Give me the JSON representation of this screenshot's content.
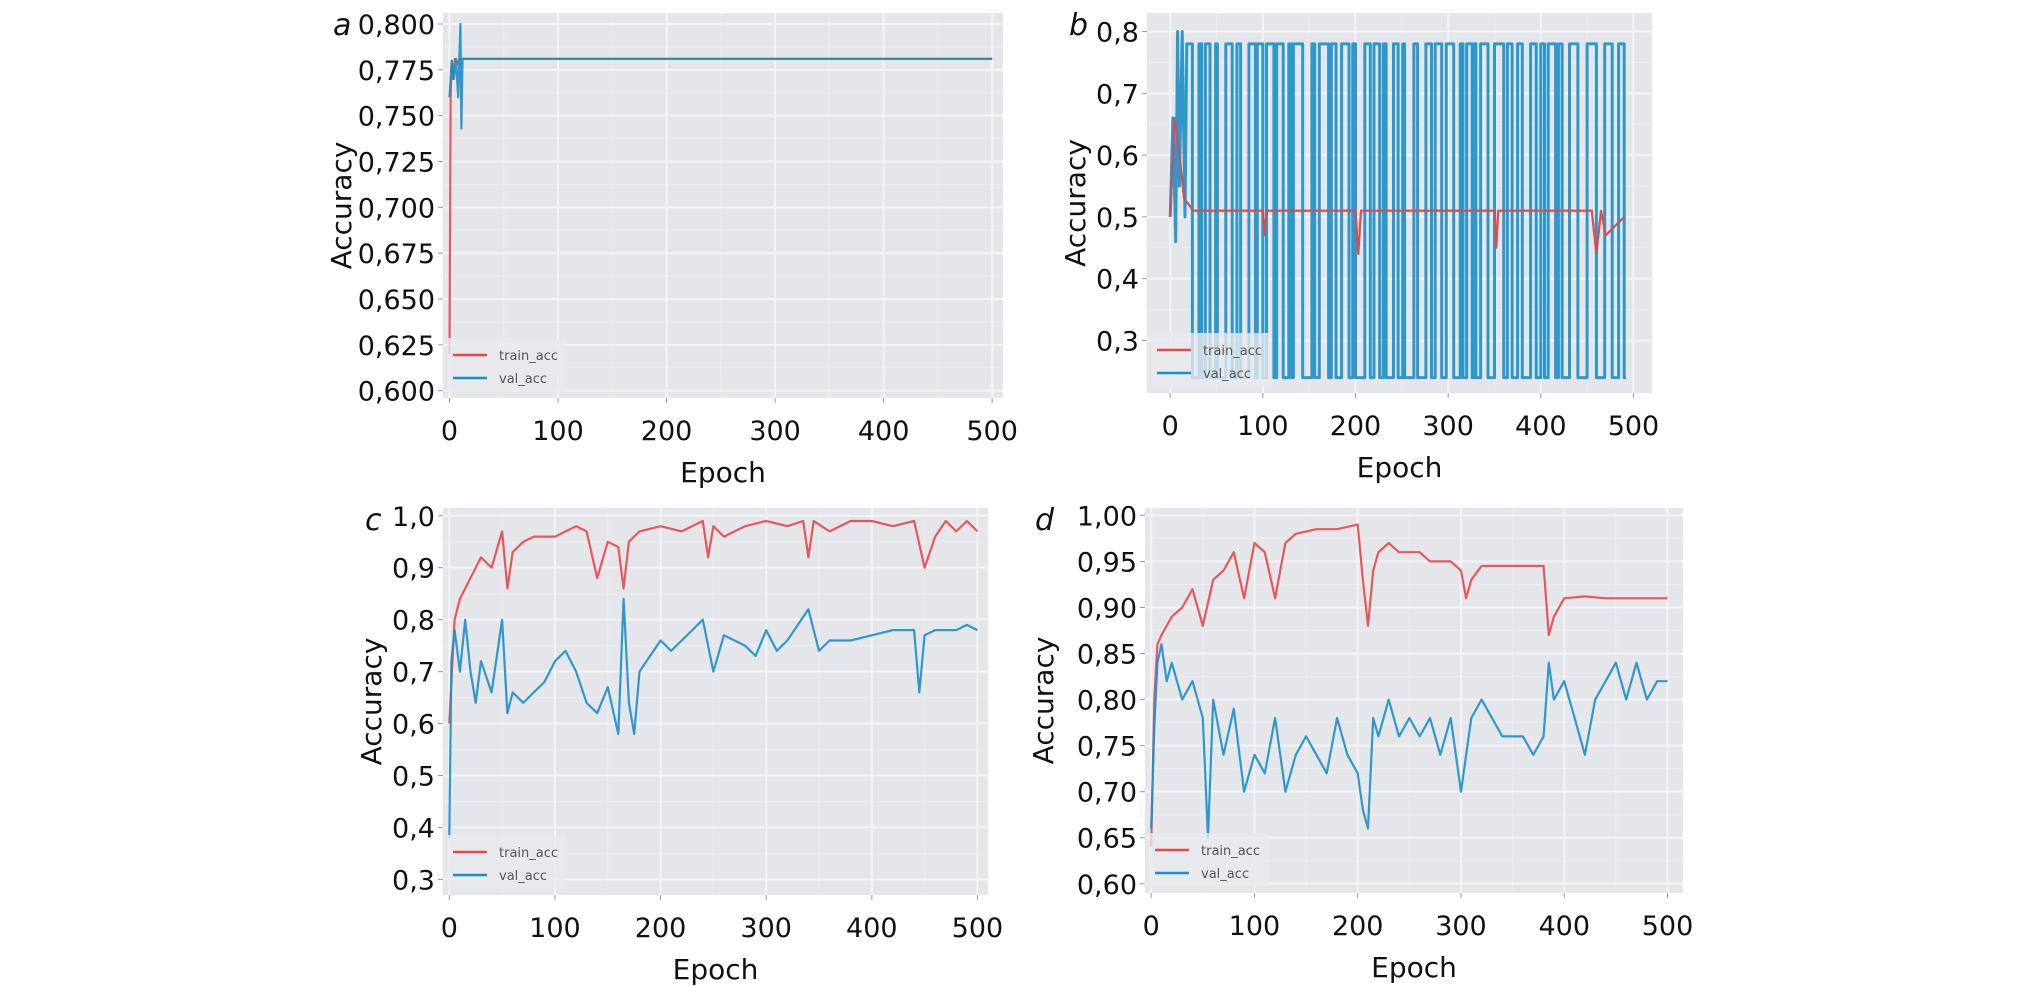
{
  "colors": {
    "train": "#e8474b",
    "val": "#1b8fc7",
    "panel_bg": "#e5e6ea",
    "grid": "#f4f4f6"
  },
  "chart_data": [
    {
      "panel": "a",
      "type": "line",
      "xlabel": "Epoch",
      "ylabel": "Accuracy",
      "xlim": [
        -6,
        510
      ],
      "ylim": [
        0.596,
        0.806
      ],
      "xticks": [
        0,
        100,
        200,
        300,
        400,
        500
      ],
      "xtick_labels": [
        "0",
        "100",
        "200",
        "300",
        "400",
        "500"
      ],
      "yticks": [
        0.6,
        0.625,
        0.65,
        0.675,
        0.7,
        0.725,
        0.75,
        0.775,
        0.8
      ],
      "ytick_labels": [
        "0,600",
        "0,625",
        "0,650",
        "0,675",
        "0,700",
        "0,725",
        "0,750",
        "0,775",
        "0,800"
      ],
      "legend": {
        "position": "bottom-left",
        "entries": [
          "train_acc",
          "val_acc"
        ]
      },
      "series": [
        {
          "name": "train_acc",
          "x": [
            0,
            1,
            2,
            3,
            5,
            7,
            9,
            12,
            500
          ],
          "values": [
            0.62,
            0.76,
            0.78,
            0.77,
            0.781,
            0.778,
            0.781,
            0.781,
            0.781
          ]
        },
        {
          "name": "val_acc",
          "x": [
            0,
            2,
            4,
            6,
            8,
            10,
            11,
            12,
            13,
            500
          ],
          "values": [
            0.76,
            0.78,
            0.77,
            0.781,
            0.76,
            0.8,
            0.743,
            0.781,
            0.781,
            0.781
          ]
        }
      ]
    },
    {
      "panel": "b",
      "type": "line",
      "xlabel": "Epoch",
      "ylabel": "Accuracy",
      "xlim": [
        -25,
        520
      ],
      "ylim": [
        0.215,
        0.83
      ],
      "xticks": [
        0,
        100,
        200,
        300,
        400,
        500
      ],
      "xtick_labels": [
        "0",
        "100",
        "200",
        "300",
        "400",
        "500"
      ],
      "yticks": [
        0.3,
        0.4,
        0.5,
        0.6,
        0.7,
        0.8
      ],
      "ytick_labels": [
        "0,3",
        "0,4",
        "0,5",
        "0,6",
        "0,7",
        "0,8"
      ],
      "legend": {
        "position": "bottom-left",
        "entries": [
          "train_acc",
          "val_acc"
        ]
      },
      "series": [
        {
          "name": "train_acc",
          "x": [
            0,
            5,
            10,
            15,
            20,
            25,
            100,
            102,
            104,
            200,
            203,
            206,
            350,
            352,
            354,
            455,
            460,
            465,
            470,
            490
          ],
          "values": [
            0.5,
            0.66,
            0.6,
            0.53,
            0.52,
            0.51,
            0.51,
            0.47,
            0.51,
            0.51,
            0.44,
            0.51,
            0.51,
            0.45,
            0.51,
            0.51,
            0.44,
            0.51,
            0.47,
            0.5
          ]
        },
        {
          "name": "val_acc",
          "pattern": "oscillating between 0.24 and 0.78",
          "low": 0.24,
          "high": 0.78,
          "early_peak": 0.8
        }
      ]
    },
    {
      "panel": "c",
      "type": "line",
      "xlabel": "Epoch",
      "ylabel": "Accuracy",
      "xlim": [
        -6,
        510
      ],
      "ylim": [
        0.27,
        1.015
      ],
      "xticks": [
        0,
        100,
        200,
        300,
        400,
        500
      ],
      "xtick_labels": [
        "0",
        "100",
        "200",
        "300",
        "400",
        "500"
      ],
      "yticks": [
        0.3,
        0.4,
        0.5,
        0.6,
        0.7,
        0.8,
        0.9,
        1.0
      ],
      "ytick_labels": [
        "0,3",
        "0,4",
        "0,5",
        "0,6",
        "0,7",
        "0,8",
        "0,9",
        "1,0"
      ],
      "legend": {
        "position": "bottom-left",
        "entries": [
          "train_acc",
          "val_acc"
        ]
      },
      "series": [
        {
          "name": "train_acc",
          "x": [
            0,
            5,
            10,
            20,
            30,
            40,
            50,
            55,
            60,
            70,
            80,
            100,
            120,
            130,
            140,
            150,
            160,
            165,
            170,
            180,
            200,
            220,
            240,
            245,
            250,
            260,
            280,
            300,
            320,
            335,
            340,
            345,
            360,
            380,
            400,
            420,
            440,
            450,
            460,
            470,
            480,
            490,
            500
          ],
          "values": [
            0.6,
            0.8,
            0.84,
            0.88,
            0.92,
            0.9,
            0.97,
            0.86,
            0.93,
            0.95,
            0.96,
            0.96,
            0.98,
            0.97,
            0.88,
            0.95,
            0.94,
            0.86,
            0.95,
            0.97,
            0.98,
            0.97,
            0.99,
            0.92,
            0.98,
            0.96,
            0.98,
            0.99,
            0.98,
            0.99,
            0.92,
            0.99,
            0.97,
            0.99,
            0.99,
            0.98,
            0.99,
            0.9,
            0.96,
            0.99,
            0.97,
            0.99,
            0.97
          ]
        },
        {
          "name": "val_acc",
          "x": [
            0,
            2,
            5,
            10,
            15,
            20,
            25,
            30,
            40,
            50,
            55,
            60,
            70,
            80,
            90,
            100,
            110,
            120,
            130,
            140,
            150,
            160,
            165,
            170,
            175,
            180,
            190,
            200,
            210,
            220,
            230,
            240,
            250,
            260,
            270,
            280,
            290,
            300,
            310,
            320,
            340,
            350,
            360,
            380,
            400,
            420,
            440,
            445,
            450,
            460,
            470,
            480,
            490,
            500
          ],
          "values": [
            0.38,
            0.72,
            0.78,
            0.7,
            0.8,
            0.7,
            0.64,
            0.72,
            0.66,
            0.8,
            0.62,
            0.66,
            0.64,
            0.66,
            0.68,
            0.72,
            0.74,
            0.7,
            0.64,
            0.62,
            0.67,
            0.58,
            0.84,
            0.64,
            0.58,
            0.7,
            0.73,
            0.76,
            0.74,
            0.76,
            0.78,
            0.8,
            0.7,
            0.77,
            0.76,
            0.75,
            0.73,
            0.78,
            0.74,
            0.76,
            0.82,
            0.74,
            0.76,
            0.76,
            0.77,
            0.78,
            0.78,
            0.66,
            0.77,
            0.78,
            0.78,
            0.78,
            0.79,
            0.78
          ]
        }
      ]
    },
    {
      "panel": "d",
      "type": "line",
      "xlabel": "Epoch",
      "ylabel": "Accuracy",
      "xlim": [
        -6,
        515
      ],
      "ylim": [
        0.59,
        1.008
      ],
      "xticks": [
        0,
        100,
        200,
        300,
        400,
        500
      ],
      "xtick_labels": [
        "0",
        "100",
        "200",
        "300",
        "400",
        "500"
      ],
      "yticks": [
        0.6,
        0.65,
        0.7,
        0.75,
        0.8,
        0.85,
        0.9,
        0.95,
        1.0
      ],
      "ytick_labels": [
        "0,60",
        "0,65",
        "0,70",
        "0,75",
        "0,80",
        "0,85",
        "0,90",
        "0,95",
        "1,00"
      ],
      "legend": {
        "position": "bottom-left",
        "entries": [
          "train_acc",
          "val_acc"
        ]
      },
      "series": [
        {
          "name": "train_acc",
          "x": [
            0,
            3,
            6,
            10,
            20,
            30,
            40,
            50,
            60,
            70,
            80,
            90,
            100,
            110,
            120,
            130,
            140,
            160,
            180,
            200,
            205,
            210,
            215,
            220,
            230,
            240,
            250,
            260,
            270,
            280,
            290,
            300,
            305,
            310,
            320,
            330,
            340,
            380,
            385,
            390,
            400,
            420,
            440,
            500
          ],
          "values": [
            0.64,
            0.8,
            0.86,
            0.87,
            0.89,
            0.9,
            0.92,
            0.88,
            0.93,
            0.94,
            0.96,
            0.91,
            0.97,
            0.96,
            0.91,
            0.97,
            0.98,
            0.985,
            0.985,
            0.99,
            0.93,
            0.88,
            0.94,
            0.96,
            0.97,
            0.96,
            0.96,
            0.96,
            0.95,
            0.95,
            0.95,
            0.94,
            0.91,
            0.93,
            0.945,
            0.945,
            0.945,
            0.945,
            0.87,
            0.89,
            0.91,
            0.912,
            0.91,
            0.91
          ]
        },
        {
          "name": "val_acc",
          "x": [
            0,
            3,
            6,
            10,
            15,
            20,
            30,
            40,
            50,
            55,
            60,
            70,
            80,
            90,
            100,
            110,
            120,
            130,
            140,
            150,
            160,
            170,
            180,
            190,
            200,
            205,
            210,
            215,
            220,
            230,
            240,
            250,
            260,
            270,
            280,
            290,
            300,
            310,
            320,
            330,
            340,
            360,
            370,
            380,
            385,
            390,
            400,
            410,
            420,
            430,
            440,
            450,
            460,
            470,
            480,
            490,
            500
          ],
          "values": [
            0.66,
            0.77,
            0.84,
            0.86,
            0.82,
            0.84,
            0.8,
            0.82,
            0.78,
            0.65,
            0.8,
            0.74,
            0.79,
            0.7,
            0.74,
            0.72,
            0.78,
            0.7,
            0.74,
            0.76,
            0.74,
            0.72,
            0.78,
            0.74,
            0.72,
            0.68,
            0.66,
            0.78,
            0.76,
            0.8,
            0.76,
            0.78,
            0.76,
            0.78,
            0.74,
            0.78,
            0.7,
            0.78,
            0.8,
            0.78,
            0.76,
            0.76,
            0.74,
            0.76,
            0.84,
            0.8,
            0.82,
            0.78,
            0.74,
            0.8,
            0.82,
            0.84,
            0.8,
            0.84,
            0.8,
            0.82,
            0.82
          ]
        }
      ]
    }
  ]
}
